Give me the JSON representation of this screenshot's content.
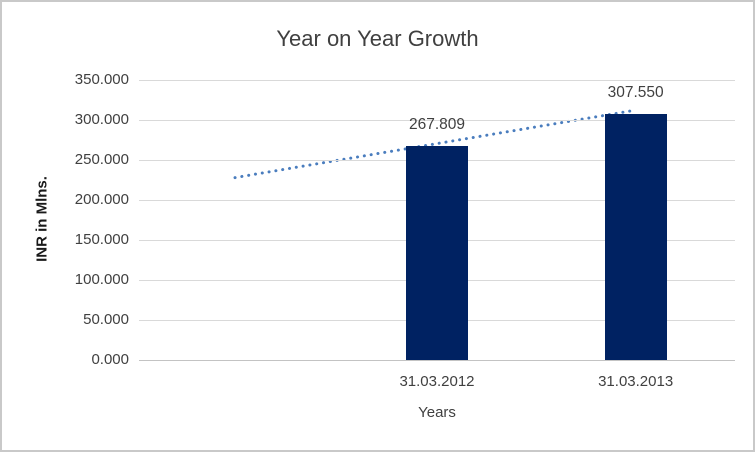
{
  "window": {
    "background": "#ffffff",
    "border_color": "#c9c9c9"
  },
  "chart_data": {
    "type": "bar",
    "title": "Year on Year Growth",
    "xlabel": "Years",
    "ylabel": "INR in Mlns.",
    "categories": [
      "31.03.2012",
      "31.03.2013"
    ],
    "values": [
      267.809,
      307.55
    ],
    "data_labels": [
      "267.809",
      "307.550"
    ],
    "yticks": [
      "0.000",
      "50.000",
      "100.000",
      "150.000",
      "200.000",
      "250.000",
      "300.000",
      "350.000"
    ],
    "ylim": [
      0,
      350
    ],
    "grid": true,
    "legend": "none",
    "bar_center_fracs": [
      0.5,
      0.8333
    ],
    "trendline": {
      "type": "linear",
      "style": "dotted",
      "start_frac": 0.1611,
      "end_frac": 0.8305,
      "start_value": 228.0,
      "end_value": 312.0
    },
    "colors": {
      "bar": "#002262",
      "trendline": "#4a7dbe",
      "gridline": "#d9d9d9",
      "axis_line": "#c3c3c3",
      "title_text": "#404040",
      "tick_text": "#404040",
      "label_text": "#404040",
      "ylabel_text": "#1a1a1a"
    }
  }
}
